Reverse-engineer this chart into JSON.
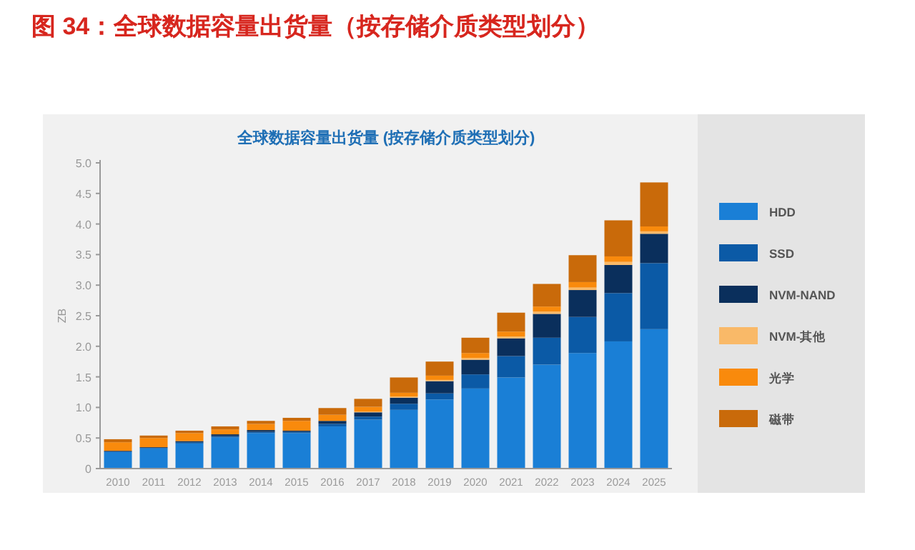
{
  "chart_data": {
    "type": "bar",
    "stacked": true,
    "title": "图 34：全球数据容量出货量（按存储介质类型划分）",
    "subtitle": "全球数据容量出货量 (按存储介质类型划分)",
    "ylabel": "ZB",
    "legend": "right",
    "grid": false,
    "categories": [
      "2010",
      "2011",
      "2012",
      "2013",
      "2014",
      "2015",
      "2016",
      "2017",
      "2018",
      "2019",
      "2020",
      "2021",
      "2022",
      "2023",
      "2024",
      "2025"
    ],
    "ylim": [
      0,
      5
    ],
    "yticks": [
      0,
      {
        "value": 0.5,
        "label": "0.5"
      },
      {
        "value": 1,
        "label": "1.0"
      },
      {
        "value": 1.5,
        "label": "1.5"
      },
      {
        "value": 2,
        "label": "2.0"
      },
      {
        "value": 2.5,
        "label": "2.5"
      },
      {
        "value": 3,
        "label": "3.0"
      },
      {
        "value": 3.5,
        "label": "3.5"
      },
      {
        "value": 4,
        "label": "4.0"
      },
      {
        "value": 4.5,
        "label": "4.5"
      },
      {
        "value": 5,
        "label": "5.0"
      }
    ],
    "series": [
      {
        "name": "HDD",
        "color": "#1a7fd6",
        "values": [
          0.27,
          0.33,
          0.41,
          0.51,
          0.58,
          0.58,
          0.69,
          0.8,
          0.96,
          1.13,
          1.31,
          1.49,
          1.7,
          1.89,
          2.08,
          2.28
        ]
      },
      {
        "name": "SSD",
        "color": "#0b5aa6",
        "values": [
          0.01,
          0.01,
          0.02,
          0.02,
          0.02,
          0.02,
          0.04,
          0.05,
          0.1,
          0.1,
          0.23,
          0.35,
          0.44,
          0.59,
          0.79,
          1.08
        ]
      },
      {
        "name": "NVM-NAND",
        "color": "#0a2f5c",
        "values": [
          0.01,
          0.01,
          0.02,
          0.03,
          0.03,
          0.02,
          0.05,
          0.07,
          0.1,
          0.2,
          0.24,
          0.29,
          0.39,
          0.44,
          0.46,
          0.48
        ]
      },
      {
        "name": "NVM-其他",
        "color": "#f9b968",
        "values": [
          0,
          0,
          0,
          0,
          0,
          0,
          0,
          0.01,
          0.02,
          0.02,
          0.03,
          0.03,
          0.04,
          0.04,
          0.05,
          0.04
        ]
      },
      {
        "name": "光学",
        "color": "#f98a0c",
        "values": [
          0.14,
          0.15,
          0.13,
          0.08,
          0.1,
          0.16,
          0.1,
          0.08,
          0.06,
          0.07,
          0.08,
          0.08,
          0.08,
          0.09,
          0.09,
          0.08
        ]
      },
      {
        "name": "磁带",
        "color": "#c96a0a",
        "values": [
          0.05,
          0.04,
          0.04,
          0.05,
          0.05,
          0.05,
          0.11,
          0.13,
          0.25,
          0.23,
          0.25,
          0.31,
          0.37,
          0.44,
          0.59,
          0.72
        ]
      }
    ]
  }
}
